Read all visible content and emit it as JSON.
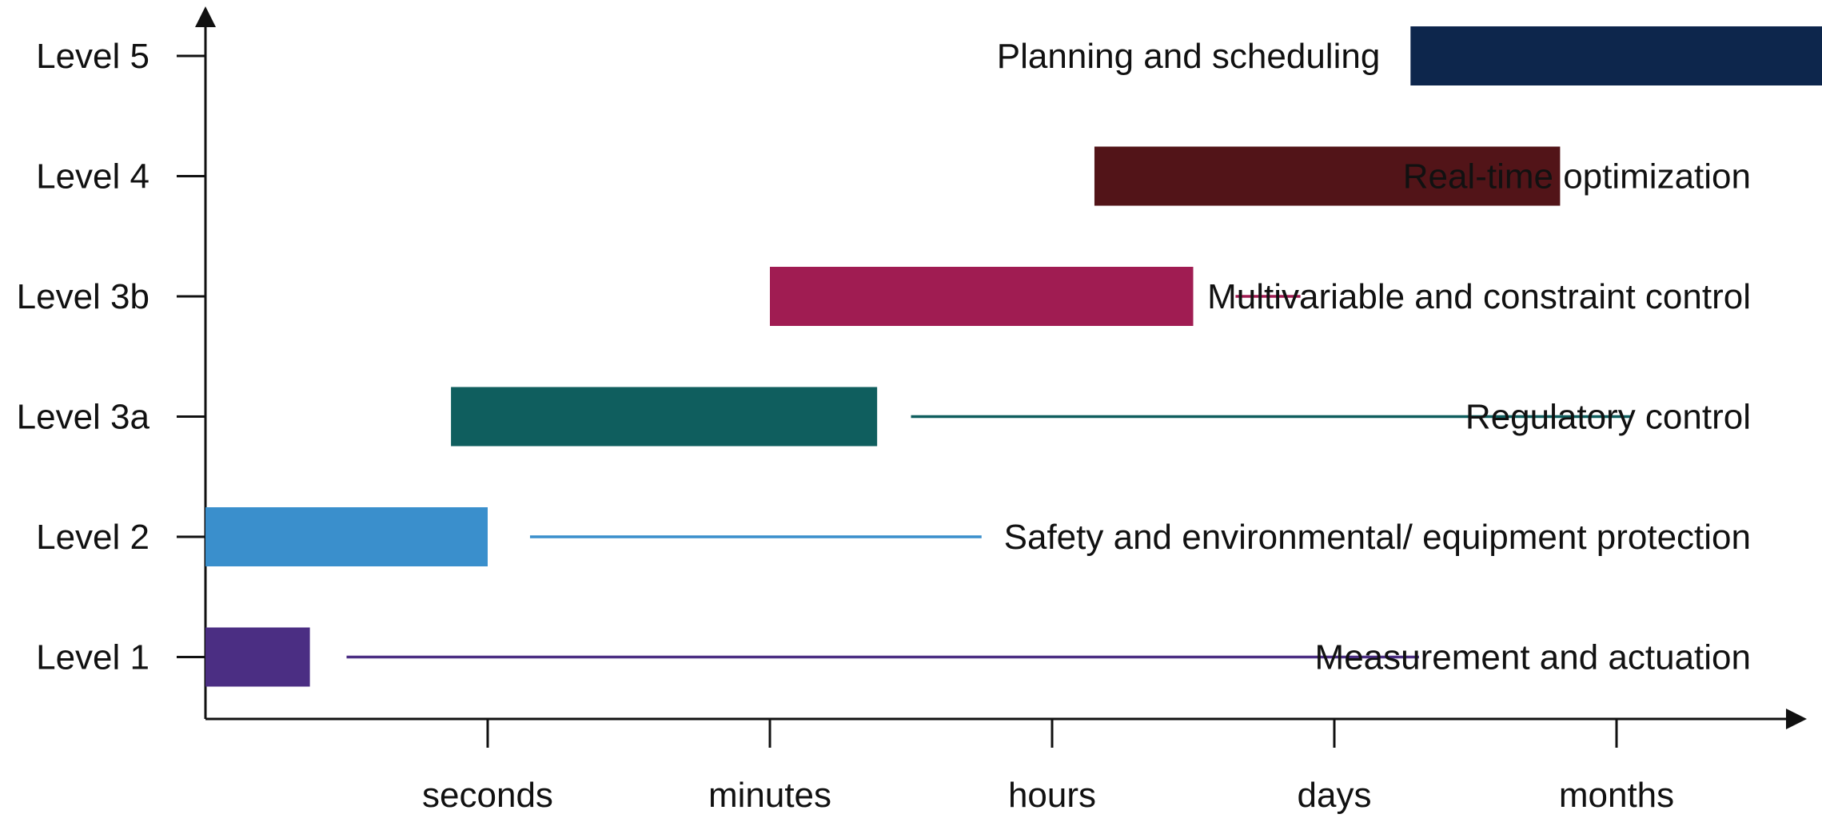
{
  "chart_data": {
    "type": "bar",
    "title": "",
    "xlabel": "",
    "ylabel": "",
    "x_ticks": [
      {
        "label": "seconds",
        "pos": 1
      },
      {
        "label": "minutes",
        "pos": 2
      },
      {
        "label": "hours",
        "pos": 3
      },
      {
        "label": "days",
        "pos": 4
      },
      {
        "label": "months",
        "pos": 5
      }
    ],
    "xlim": [
      0,
      6.3
    ],
    "categories": [
      "Level 1",
      "Level 2",
      "Level 3a",
      "Level 3b",
      "Level 4",
      "Level 5"
    ],
    "series": [
      {
        "category": "Level 1",
        "start": 0,
        "end": 0.37,
        "color": "#4b2e83",
        "description": "Measurement and actuation",
        "label_side": "right",
        "leader_start": 0.5,
        "leader_end": 4.3
      },
      {
        "category": "Level 2",
        "start": 0,
        "end": 1.0,
        "color": "#3a8fcc",
        "description": "Safety and environmental/ equipment protection",
        "label_side": "right",
        "leader_start": 1.15,
        "leader_end": 2.75
      },
      {
        "category": "Level 3a",
        "start": 0.87,
        "end": 2.38,
        "color": "#0f5e5e",
        "description": "Regulatory control",
        "label_side": "right",
        "leader_start": 2.5,
        "leader_end": 5.05
      },
      {
        "category": "Level 3b",
        "start": 2.0,
        "end": 3.5,
        "color": "#a01c52",
        "description": "Multivariable and constraint control",
        "label_side": "right",
        "leader_start": 3.65,
        "leader_end": 3.88
      },
      {
        "category": "Level 4",
        "start": 3.15,
        "end": 4.8,
        "color": "#521418",
        "description": "Real-time optimization",
        "label_side": "right",
        "leader_start": null,
        "leader_end": null
      },
      {
        "category": "Level 5",
        "start": 4.27,
        "end": 6.05,
        "color": "#0d264c",
        "description": "Planning and scheduling",
        "label_side": "left",
        "leader_start": null,
        "leader_end": null
      }
    ],
    "grid": false,
    "legend": "none"
  }
}
